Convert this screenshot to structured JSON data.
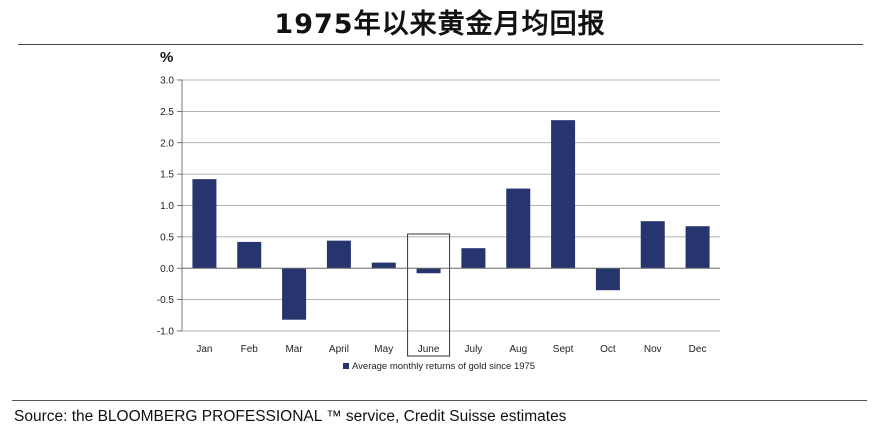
{
  "title": "1975年以来黄金月均回报",
  "source": "Source: the BLOOMBERG PROFESSIONAL ™ service, Credit Suisse estimates",
  "chart_data": {
    "type": "bar",
    "ylabel": "%",
    "categories": [
      "Jan",
      "Feb",
      "Mar",
      "April",
      "May",
      "June",
      "July",
      "Aug",
      "Sept",
      "Oct",
      "Nov",
      "Dec"
    ],
    "series": [
      {
        "name": "Average monthly returns of gold since 1975",
        "values": [
          1.42,
          0.42,
          -0.82,
          0.44,
          0.09,
          -0.08,
          0.32,
          1.27,
          2.36,
          -0.35,
          0.75,
          0.67
        ]
      }
    ],
    "ylim": [
      -1.0,
      3.0
    ],
    "yticks": [
      "3.0",
      "2.5",
      "2.0",
      "1.5",
      "1.0",
      "0.5",
      "0.0",
      "-0.5",
      "-1.0"
    ],
    "grid": true,
    "legend": "bottom-center",
    "highlight_category": "June",
    "colors": {
      "bar": "#26356e",
      "grid": "#9a9a9a",
      "highlight": "#333333"
    }
  }
}
